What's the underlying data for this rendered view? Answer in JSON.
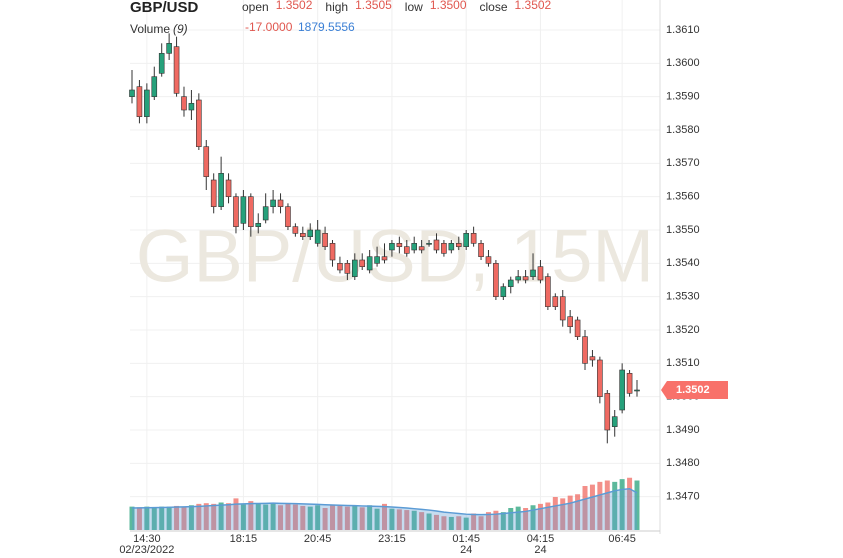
{
  "chart_data": {
    "type": "candlestick",
    "title": "GBP/USD",
    "watermark": "GBP/USD, 15M",
    "ohlc_legend": [
      {
        "label": "open",
        "value": "1.3502"
      },
      {
        "label": "high",
        "value": "1.3505"
      },
      {
        "label": "low",
        "value": "1.3500"
      },
      {
        "label": "close",
        "value": "1.3502"
      }
    ],
    "volume_legend": {
      "label": "Volume",
      "period": "(9)",
      "change": "-17.0000",
      "average": "1879.5556"
    },
    "last_price": {
      "value": 1.3502,
      "label": "1.3502"
    },
    "up_color": "#26a17b",
    "down_color": "#ef6a62",
    "ma_color": "#5b9bd5",
    "open": [
      1.359,
      1.3593,
      1.3584,
      1.359,
      1.3597,
      1.3603,
      1.3605,
      1.359,
      1.3586,
      1.3589,
      1.3575,
      1.3565,
      1.3557,
      1.3565,
      1.356,
      1.3552,
      1.356,
      1.3551,
      1.3553,
      1.3557,
      1.3559,
      1.3557,
      1.3551,
      1.3549,
      1.3548,
      1.3546,
      1.3549,
      1.3546,
      1.354,
      1.354,
      1.3536,
      1.3541,
      1.3538,
      1.354,
      1.3542,
      1.3544,
      1.3546,
      1.3545,
      1.3544,
      1.3545,
      1.3546,
      1.3547,
      1.3546,
      1.3544,
      1.3546,
      1.3545,
      1.3549,
      1.3546,
      1.3542,
      1.354,
      1.353,
      1.3533,
      1.3535,
      1.3536,
      1.3536,
      1.3539,
      1.3536,
      1.353,
      1.353,
      1.3524,
      1.3523,
      1.3518,
      1.3512,
      1.3511,
      1.3501,
      1.3491,
      1.3496,
      1.3507,
      1.3502
    ],
    "high": [
      1.3598,
      1.3595,
      1.3594,
      1.3599,
      1.3606,
      1.3609,
      1.3608,
      1.3593,
      1.3592,
      1.3591,
      1.3577,
      1.3567,
      1.3572,
      1.3567,
      1.3561,
      1.3562,
      1.3561,
      1.3555,
      1.3561,
      1.3562,
      1.3561,
      1.3558,
      1.3552,
      1.3551,
      1.3552,
      1.3553,
      1.3551,
      1.3547,
      1.3542,
      1.3541,
      1.3543,
      1.3543,
      1.3544,
      1.3545,
      1.3546,
      1.3547,
      1.3548,
      1.3547,
      1.3548,
      1.3547,
      1.3547,
      1.3549,
      1.3547,
      1.3547,
      1.3548,
      1.355,
      1.3551,
      1.3547,
      1.3544,
      1.3541,
      1.3534,
      1.3536,
      1.3538,
      1.3538,
      1.3543,
      1.3541,
      1.3537,
      1.3531,
      1.3532,
      1.3526,
      1.3524,
      1.352,
      1.3514,
      1.3512,
      1.3502,
      1.3496,
      1.351,
      1.3508,
      1.3505
    ],
    "low": [
      1.3588,
      1.3582,
      1.3582,
      1.3589,
      1.3596,
      1.3601,
      1.359,
      1.3584,
      1.3583,
      1.3574,
      1.3562,
      1.3555,
      1.3556,
      1.3558,
      1.3549,
      1.355,
      1.3548,
      1.3549,
      1.3552,
      1.3555,
      1.3555,
      1.355,
      1.3548,
      1.3547,
      1.3547,
      1.3545,
      1.3544,
      1.3539,
      1.3537,
      1.3535,
      1.3535,
      1.3538,
      1.3537,
      1.3539,
      1.354,
      1.3542,
      1.3543,
      1.3542,
      1.3543,
      1.3543,
      1.3545,
      1.3543,
      1.3542,
      1.3543,
      1.3544,
      1.3544,
      1.3545,
      1.3541,
      1.3539,
      1.3529,
      1.3529,
      1.3531,
      1.3534,
      1.3534,
      1.3535,
      1.3534,
      1.3526,
      1.3526,
      1.3521,
      1.3519,
      1.3517,
      1.3508,
      1.3509,
      1.3498,
      1.3486,
      1.3488,
      1.3495,
      1.35,
      1.35
    ],
    "close": [
      1.3592,
      1.3584,
      1.3592,
      1.3596,
      1.3603,
      1.3606,
      1.3591,
      1.3586,
      1.3588,
      1.3575,
      1.3566,
      1.3557,
      1.3567,
      1.356,
      1.3551,
      1.356,
      1.3551,
      1.3552,
      1.3557,
      1.3559,
      1.3557,
      1.3551,
      1.3549,
      1.3548,
      1.355,
      1.355,
      1.3545,
      1.3541,
      1.3538,
      1.3537,
      1.3541,
      1.3539,
      1.3542,
      1.3542,
      1.3541,
      1.3546,
      1.3545,
      1.3543,
      1.3546,
      1.3544,
      1.3546,
      1.3544,
      1.3543,
      1.3546,
      1.3545,
      1.3549,
      1.3546,
      1.3542,
      1.354,
      1.353,
      1.3533,
      1.3535,
      1.3536,
      1.3535,
      1.3538,
      1.3535,
      1.3527,
      1.3527,
      1.3523,
      1.3521,
      1.3518,
      1.351,
      1.3511,
      1.35,
      1.349,
      1.3494,
      1.3508,
      1.3501,
      1.3502
    ],
    "volume": [
      1700,
      1650,
      1700,
      1650,
      1700,
      1700,
      1750,
      1650,
      1800,
      1900,
      1950,
      1900,
      2000,
      1950,
      2300,
      1850,
      2100,
      1900,
      1850,
      1950,
      1800,
      1900,
      1850,
      1750,
      1700,
      1800,
      1600,
      1800,
      1750,
      1700,
      1750,
      1650,
      1800,
      1550,
      1900,
      1550,
      1500,
      1450,
      1400,
      1300,
      1200,
      1100,
      1000,
      950,
      1000,
      900,
      1200,
      1000,
      1300,
      1400,
      1300,
      1600,
      1700,
      1600,
      1800,
      1900,
      2000,
      2400,
      2300,
      2500,
      2600,
      3200,
      3300,
      3500,
      3600,
      3500,
      3700,
      3800,
      3600
    ],
    "volume_ma": [
      1600,
      1610,
      1620,
      1630,
      1640,
      1650,
      1670,
      1680,
      1700,
      1720,
      1750,
      1780,
      1810,
      1840,
      1880,
      1900,
      1920,
      1930,
      1940,
      1950,
      1940,
      1930,
      1920,
      1900,
      1880,
      1860,
      1840,
      1820,
      1800,
      1780,
      1770,
      1750,
      1740,
      1720,
      1700,
      1670,
      1640,
      1600,
      1550,
      1500,
      1450,
      1380,
      1300,
      1250,
      1200,
      1150,
      1130,
      1120,
      1130,
      1150,
      1200,
      1250,
      1300,
      1350,
      1450,
      1550,
      1650,
      1750,
      1850,
      1950,
      2100,
      2250,
      2400,
      2550,
      2700,
      2850,
      2950,
      3000,
      2700
    ],
    "vlim": [
      0,
      4000
    ],
    "ylim": [
      1.346,
      1.3619
    ],
    "yticks": [
      {
        "value": 1.347,
        "label": "1.3470"
      },
      {
        "value": 1.348,
        "label": "1.3480"
      },
      {
        "value": 1.349,
        "label": "1.3490"
      },
      {
        "value": 1.35,
        "label": "1.3500"
      },
      {
        "value": 1.351,
        "label": "1.3510"
      },
      {
        "value": 1.352,
        "label": "1.3520"
      },
      {
        "value": 1.353,
        "label": "1.3530"
      },
      {
        "value": 1.354,
        "label": "1.3540"
      },
      {
        "value": 1.355,
        "label": "1.3550"
      },
      {
        "value": 1.356,
        "label": "1.3560"
      },
      {
        "value": 1.357,
        "label": "1.3570"
      },
      {
        "value": 1.358,
        "label": "1.3580"
      },
      {
        "value": 1.359,
        "label": "1.3590"
      },
      {
        "value": 1.36,
        "label": "1.3600"
      },
      {
        "value": 1.361,
        "label": "1.3610"
      }
    ],
    "xticks": [
      {
        "value": 2,
        "label": "14:30",
        "sublabel": "02/23/2022"
      },
      {
        "value": 15,
        "label": "18:15"
      },
      {
        "value": 25,
        "label": "20:45"
      },
      {
        "value": 35,
        "label": "23:15"
      },
      {
        "value": 45,
        "label": "01:45",
        "sublabel": "24"
      },
      {
        "value": 55,
        "label": "04:15",
        "sublabel": "24"
      },
      {
        "value": 66,
        "label": "06:45"
      }
    ],
    "grid": true
  }
}
